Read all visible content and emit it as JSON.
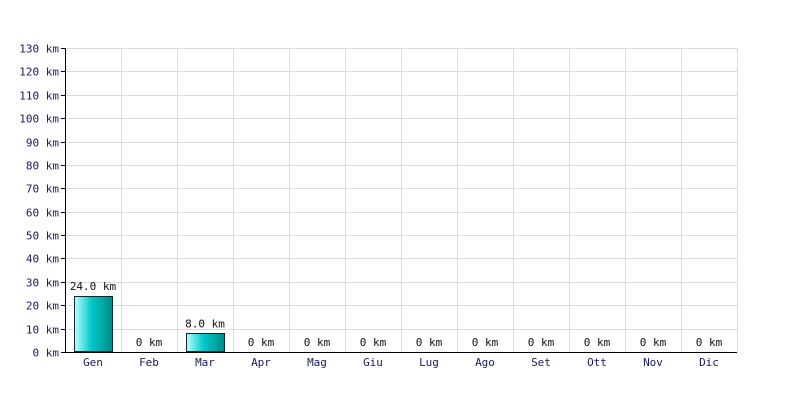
{
  "chart_data": {
    "type": "bar",
    "categories": [
      "Gen",
      "Feb",
      "Mar",
      "Apr",
      "Mag",
      "Giu",
      "Lug",
      "Ago",
      "Set",
      "Ott",
      "Nov",
      "Dic"
    ],
    "values": [
      24.0,
      0,
      8.0,
      0,
      0,
      0,
      0,
      0,
      0,
      0,
      0,
      0
    ],
    "data_labels": [
      "24.0 km",
      "0 km",
      "8.0 km",
      "0 km",
      "0 km",
      "0 km",
      "0 km",
      "0 km",
      "0 km",
      "0 km",
      "0 km",
      "0 km"
    ],
    "yticks": [
      0,
      10,
      20,
      30,
      40,
      50,
      60,
      70,
      80,
      90,
      100,
      110,
      120,
      130
    ],
    "ytick_labels": [
      "0 km",
      "10 km",
      "20 km",
      "30 km",
      "40 km",
      "50 km",
      "60 km",
      "70 km",
      "80 km",
      "90 km",
      "100 km",
      "110 km",
      "120 km",
      "130 km"
    ],
    "ylim": [
      0,
      130
    ],
    "grid": true,
    "legend": "none",
    "bar_color_light": "#b8ffff",
    "bar_color": "#00c8c8",
    "bar_color_dark": "#008a8a",
    "grid_color": "#dcdcdc",
    "label_color": "#1a1a5e"
  }
}
